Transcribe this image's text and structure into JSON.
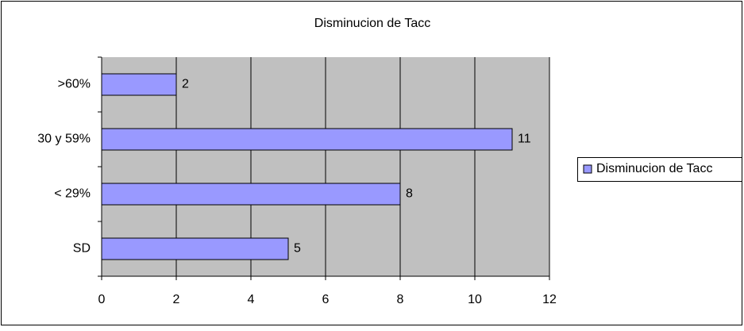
{
  "chart_data": {
    "type": "bar",
    "orientation": "horizontal",
    "title": "Disminucion de Tacc",
    "categories": [
      ">60%",
      "30 y 59%",
      "< 29%",
      "SD"
    ],
    "series": [
      {
        "name": "Disminucion de Tacc",
        "color": "#9999ff",
        "values": [
          2,
          11,
          8,
          5
        ]
      }
    ],
    "xlim": [
      0,
      12
    ],
    "xticks": [
      0,
      2,
      4,
      6,
      8,
      10,
      12
    ],
    "grid": true,
    "legend": "right"
  }
}
